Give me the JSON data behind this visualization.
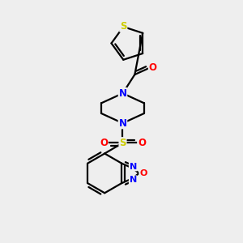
{
  "background_color": "#eeeeee",
  "bond_color": "#000000",
  "atom_colors": {
    "S_thio": "#cccc00",
    "S_sul": "#cccc00",
    "O": "#ff0000",
    "N": "#0000ff",
    "C": "#000000"
  },
  "lw": 1.6
}
